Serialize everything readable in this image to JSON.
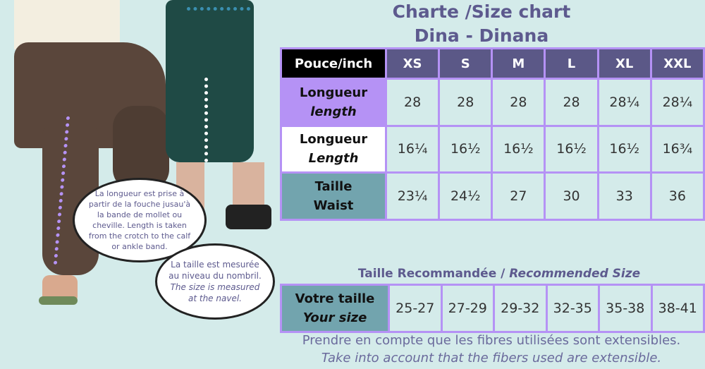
{
  "title_line1": "Charte /Size chart",
  "title_line2": "Dina - Dinana",
  "size_table": {
    "corner": "Pouce/inch",
    "sizes": [
      "XS",
      "S",
      "M",
      "L",
      "XL",
      "XXL"
    ],
    "rows": [
      {
        "label_fr": "Longueur",
        "label_en": "length",
        "bg": "#b592f5",
        "values": [
          "28",
          "28",
          "28",
          "28",
          "28¼",
          "28¼"
        ]
      },
      {
        "label_fr": "Longueur",
        "label_en": "Length",
        "bg": "#ffffff",
        "values": [
          "16¼",
          "16½",
          "16½",
          "16½",
          "16½",
          "16¾"
        ]
      },
      {
        "label_fr": "Taille",
        "label_en": "Waist",
        "bg": "#72a4ae",
        "values": [
          "23¼",
          "24½",
          "27",
          "30",
          "33",
          "36"
        ]
      }
    ]
  },
  "recommended": {
    "title_fr": "Taille Recommandée / ",
    "title_en": "Recommended Size",
    "label_fr": "Votre taille",
    "label_en": "Your size",
    "values": [
      "25-27",
      "27-29",
      "29-32",
      "32-35",
      "35-38",
      "38-41"
    ]
  },
  "bubble1": "La longueur est prise à partir de la fouche jusau'à la bande de mollet ou cheville. Length is taken from the crotch to the calf or ankle band.",
  "bubble2_fr": "La taille est mesurée au niveau du nombril.",
  "bubble2_en": "The size is measured at the navel.",
  "footer_fr": "Prendre en compte que les fibres utilisées sont extensibles.",
  "footer_en": "Take into account that the fibers used are extensible.",
  "colors": {
    "background": "#d4ebea",
    "accent_purple": "#b592f5",
    "header": "#5b5887",
    "teal": "#72a4ae"
  }
}
